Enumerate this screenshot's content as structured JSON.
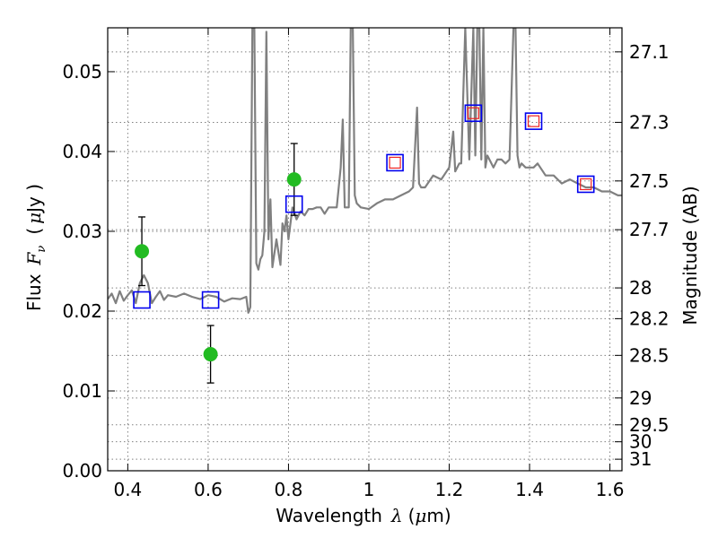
{
  "chart_data": {
    "type": "scatter",
    "title": "",
    "xlabel": {
      "text": "Wavelength",
      "symbol": "λ",
      "unit_open": "(",
      "unit_mu": "μ",
      "unit_m": "m)"
    },
    "ylabel": {
      "text": "Flux",
      "symbol": "F",
      "subscript": "ν",
      "unit_open": "(",
      "unit_mu": "μ",
      "unit_rest": "Jy )"
    },
    "y2label": "Magnitude (AB)",
    "xlim": [
      0.35,
      1.63
    ],
    "ylim": [
      0.0,
      0.0555
    ],
    "grid": true,
    "xticks": [
      0.4,
      0.6,
      0.8,
      1.0,
      1.2,
      1.4,
      1.6
    ],
    "xtick_labels": [
      "0.4",
      "0.6",
      "0.8",
      "1",
      "1.2",
      "1.4",
      "1.6"
    ],
    "yticks": [
      0.0,
      0.01,
      0.02,
      0.03,
      0.04,
      0.05
    ],
    "ytick_labels": [
      "0.00",
      "0.01",
      "0.02",
      "0.03",
      "0.04",
      "0.05"
    ],
    "mag_ticks": [
      27.1,
      27.3,
      27.5,
      27.7,
      28,
      28.2,
      28.5,
      29,
      29.5,
      30,
      31
    ],
    "mag_tick_labels": [
      "27.1",
      "27.3",
      "27.5",
      "27.7",
      "28",
      "28.2",
      "28.5",
      "29",
      "29.5",
      "30",
      "31"
    ],
    "colors": {
      "sed": "#808080",
      "photometry": "#22bb22",
      "model_blue": "#0000ee",
      "model_red": "#ee2222",
      "errorbar": "#000000"
    },
    "series": [
      {
        "name": "sed_model",
        "kind": "line",
        "x": [
          0.35,
          0.36,
          0.37,
          0.38,
          0.39,
          0.4,
          0.41,
          0.42,
          0.43,
          0.44,
          0.45,
          0.46,
          0.47,
          0.48,
          0.49,
          0.5,
          0.52,
          0.54,
          0.56,
          0.58,
          0.6,
          0.62,
          0.64,
          0.66,
          0.68,
          0.695,
          0.7,
          0.705,
          0.71,
          0.715,
          0.72,
          0.725,
          0.73,
          0.735,
          0.74,
          0.745,
          0.75,
          0.755,
          0.76,
          0.77,
          0.78,
          0.785,
          0.79,
          0.795,
          0.8,
          0.81,
          0.82,
          0.83,
          0.84,
          0.85,
          0.86,
          0.87,
          0.88,
          0.89,
          0.9,
          0.92,
          0.93,
          0.935,
          0.94,
          0.95,
          0.955,
          0.96,
          0.965,
          0.97,
          0.98,
          1.0,
          1.02,
          1.04,
          1.06,
          1.08,
          1.1,
          1.11,
          1.12,
          1.125,
          1.13,
          1.14,
          1.16,
          1.18,
          1.2,
          1.21,
          1.215,
          1.22,
          1.225,
          1.23,
          1.24,
          1.25,
          1.26,
          1.265,
          1.27,
          1.275,
          1.28,
          1.285,
          1.29,
          1.295,
          1.3,
          1.31,
          1.32,
          1.33,
          1.34,
          1.35,
          1.36,
          1.365,
          1.37,
          1.375,
          1.38,
          1.39,
          1.4,
          1.41,
          1.42,
          1.44,
          1.46,
          1.48,
          1.5,
          1.52,
          1.54,
          1.56,
          1.58,
          1.6,
          1.62,
          1.63
        ],
        "y": [
          0.0215,
          0.0222,
          0.021,
          0.0225,
          0.0213,
          0.022,
          0.0226,
          0.021,
          0.0235,
          0.0245,
          0.0235,
          0.021,
          0.0218,
          0.0225,
          0.0214,
          0.022,
          0.0218,
          0.0222,
          0.0218,
          0.0215,
          0.022,
          0.0218,
          0.0212,
          0.0216,
          0.0215,
          0.0218,
          0.0198,
          0.0205,
          0.0555,
          0.0555,
          0.026,
          0.0252,
          0.0265,
          0.027,
          0.03,
          0.055,
          0.029,
          0.034,
          0.0255,
          0.029,
          0.0258,
          0.031,
          0.03,
          0.032,
          0.029,
          0.033,
          0.0315,
          0.0325,
          0.032,
          0.0328,
          0.0328,
          0.033,
          0.033,
          0.0322,
          0.033,
          0.033,
          0.038,
          0.044,
          0.033,
          0.033,
          0.0555,
          0.0555,
          0.0345,
          0.0335,
          0.033,
          0.0328,
          0.0335,
          0.034,
          0.034,
          0.0345,
          0.035,
          0.0355,
          0.0455,
          0.036,
          0.0355,
          0.0355,
          0.037,
          0.0365,
          0.038,
          0.0425,
          0.0375,
          0.038,
          0.0385,
          0.0385,
          0.0555,
          0.039,
          0.0555,
          0.0395,
          0.0555,
          0.0555,
          0.039,
          0.0555,
          0.038,
          0.0395,
          0.039,
          0.038,
          0.039,
          0.039,
          0.0385,
          0.039,
          0.0555,
          0.0555,
          0.0395,
          0.038,
          0.0385,
          0.038,
          0.038,
          0.038,
          0.0385,
          0.037,
          0.037,
          0.036,
          0.0365,
          0.036,
          0.0355,
          0.0355,
          0.035,
          0.035,
          0.0345,
          0.0345
        ]
      },
      {
        "name": "photometry",
        "kind": "scatter_errorbar",
        "marker": "circle",
        "x": [
          0.435,
          0.606,
          0.814
        ],
        "y": [
          0.0275,
          0.0146,
          0.0365
        ],
        "yerr": [
          0.0043,
          0.0036,
          0.0045
        ]
      },
      {
        "name": "model_photometry",
        "kind": "scatter",
        "marker": "square-blue",
        "x": [
          0.435,
          0.606,
          0.814,
          1.065,
          1.26,
          1.41,
          1.54
        ],
        "y": [
          0.0214,
          0.0214,
          0.0334,
          0.0386,
          0.0448,
          0.0438,
          0.0359
        ]
      },
      {
        "name": "model_photometry_inner",
        "kind": "scatter",
        "marker": "square-red",
        "x": [
          1.065,
          1.26,
          1.41,
          1.54
        ],
        "y": [
          0.0386,
          0.0448,
          0.0438,
          0.0359
        ]
      }
    ]
  }
}
